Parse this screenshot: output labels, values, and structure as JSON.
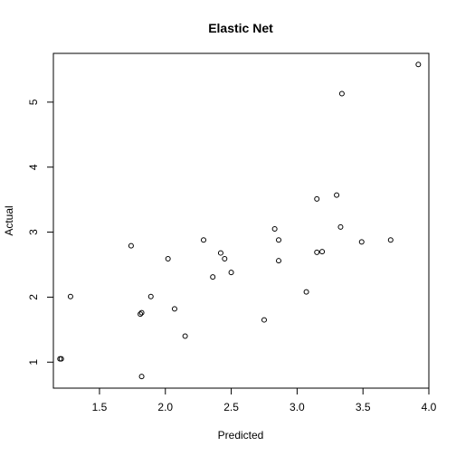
{
  "chart_data": {
    "type": "scatter",
    "title": "Elastic Net",
    "xlabel": "Predicted",
    "ylabel": "Actual",
    "xlim": [
      1.15,
      4.0
    ],
    "ylim": [
      0.6,
      5.75
    ],
    "x_ticks": [
      1.5,
      2.0,
      2.5,
      3.0,
      3.5,
      4.0
    ],
    "x_tick_labels": [
      "1.5",
      "2.0",
      "2.5",
      "3.0",
      "3.5",
      "4.0"
    ],
    "y_ticks": [
      1,
      2,
      3,
      4,
      5
    ],
    "y_tick_labels": [
      "1",
      "2",
      "3",
      "4",
      "5"
    ],
    "grid": false,
    "legend": "none",
    "marker": "open-circle",
    "points": [
      {
        "x": 1.2,
        "y": 1.05
      },
      {
        "x": 1.21,
        "y": 1.05
      },
      {
        "x": 1.28,
        "y": 2.01
      },
      {
        "x": 1.74,
        "y": 2.79
      },
      {
        "x": 1.81,
        "y": 1.74
      },
      {
        "x": 1.82,
        "y": 1.76
      },
      {
        "x": 1.82,
        "y": 0.78
      },
      {
        "x": 1.89,
        "y": 2.01
      },
      {
        "x": 2.02,
        "y": 2.59
      },
      {
        "x": 2.07,
        "y": 1.82
      },
      {
        "x": 2.15,
        "y": 1.4
      },
      {
        "x": 2.29,
        "y": 2.88
      },
      {
        "x": 2.36,
        "y": 2.31
      },
      {
        "x": 2.42,
        "y": 2.68
      },
      {
        "x": 2.45,
        "y": 2.59
      },
      {
        "x": 2.5,
        "y": 2.38
      },
      {
        "x": 2.75,
        "y": 1.65
      },
      {
        "x": 2.83,
        "y": 3.05
      },
      {
        "x": 2.86,
        "y": 2.88
      },
      {
        "x": 2.86,
        "y": 2.56
      },
      {
        "x": 3.07,
        "y": 2.08
      },
      {
        "x": 3.15,
        "y": 3.51
      },
      {
        "x": 3.15,
        "y": 2.69
      },
      {
        "x": 3.19,
        "y": 2.7
      },
      {
        "x": 3.3,
        "y": 3.57
      },
      {
        "x": 3.33,
        "y": 3.08
      },
      {
        "x": 3.34,
        "y": 5.13
      },
      {
        "x": 3.49,
        "y": 2.85
      },
      {
        "x": 3.71,
        "y": 2.88
      },
      {
        "x": 3.92,
        "y": 5.58
      }
    ]
  }
}
